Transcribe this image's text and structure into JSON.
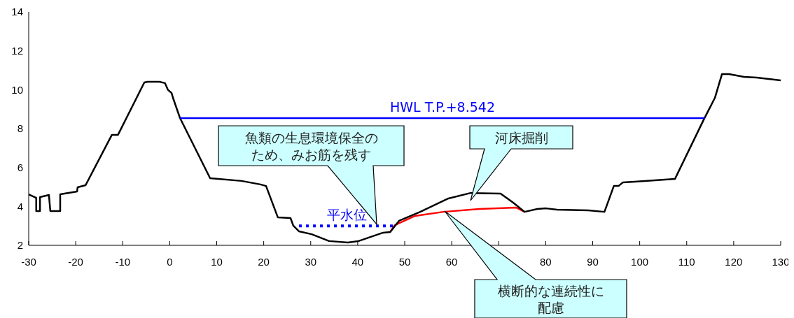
{
  "chart_data": {
    "type": "line",
    "xlim": [
      -30,
      130
    ],
    "ylim": [
      2,
      14
    ],
    "xticks": [
      -30,
      -20,
      -10,
      0,
      10,
      20,
      30,
      40,
      50,
      60,
      {
        "value": 70,
        "label": null
      },
      80,
      90,
      100,
      110,
      120,
      130
    ],
    "yticks": [
      2,
      4,
      6,
      8,
      10,
      12,
      14
    ],
    "marker": "none",
    "series": [
      {
        "color": "#ff0000",
        "x": [
          46.9,
          47.9,
          52.2,
          58.2,
          65.9,
          73.7,
          75.5
        ],
        "values": [
          2.68,
          3.04,
          3.51,
          3.72,
          3.87,
          3.94,
          3.72
        ]
      },
      {
        "color": "#000000",
        "x": [
          -30,
          -28.4,
          -28.4,
          -27.6,
          -27.6,
          -25.7,
          -25.4,
          -23.3,
          -23.3,
          -19.7,
          -19.6,
          -17.9,
          -12.3,
          -11.0,
          -5.4,
          -4.7,
          -2.2,
          -1.0,
          -0.4,
          0.4,
          0.7,
          2.2,
          8.6,
          15.3,
          19.3,
          20.5,
          23.0,
          25.7,
          26.3,
          27.5,
          30.2,
          33.9,
          37.9,
          40.2,
          45.4,
          46.9,
          48.8,
          53.3,
          59.3,
          64.0,
          70.4,
          73.1,
          75.5,
          78.2,
          80.1,
          82.4,
          89.1,
          92.5,
          94.5,
          95.5,
          96.4,
          98.9,
          107.5,
          113.7,
          116.0,
          117.5,
          119.0,
          122.2,
          124.9,
          130
        ],
        "values": [
          4.62,
          4.44,
          3.76,
          3.76,
          4.48,
          4.59,
          3.76,
          3.76,
          4.62,
          4.77,
          4.98,
          5.09,
          7.68,
          7.68,
          10.37,
          10.41,
          10.41,
          10.34,
          10.0,
          9.83,
          9.58,
          8.54,
          5.45,
          5.31,
          5.13,
          5.05,
          3.44,
          3.4,
          3.01,
          2.72,
          2.57,
          2.22,
          2.14,
          2.22,
          2.65,
          2.68,
          3.26,
          3.72,
          4.41,
          4.69,
          4.66,
          4.19,
          3.72,
          3.87,
          3.9,
          3.83,
          3.8,
          3.72,
          5.05,
          5.05,
          5.23,
          5.27,
          5.41,
          8.5,
          9.58,
          10.8,
          10.8,
          10.66,
          10.62,
          10.48
        ]
      },
      {
        "name": "HWL T.P.+8.542",
        "color": "#0000ff",
        "x": [
          2.2,
          113.9
        ],
        "values": [
          8.542,
          8.542
        ]
      },
      {
        "name": "平水位",
        "color": "#0000ff",
        "line_style": "dotted",
        "x": [
          27.5,
          48.0
        ],
        "values": [
          3.0,
          3.0
        ]
      }
    ],
    "annotations": [
      "魚類の生息環境保全のため、みお筋を残す",
      "河床掘削",
      "横断的な連続性に配慮"
    ]
  }
}
